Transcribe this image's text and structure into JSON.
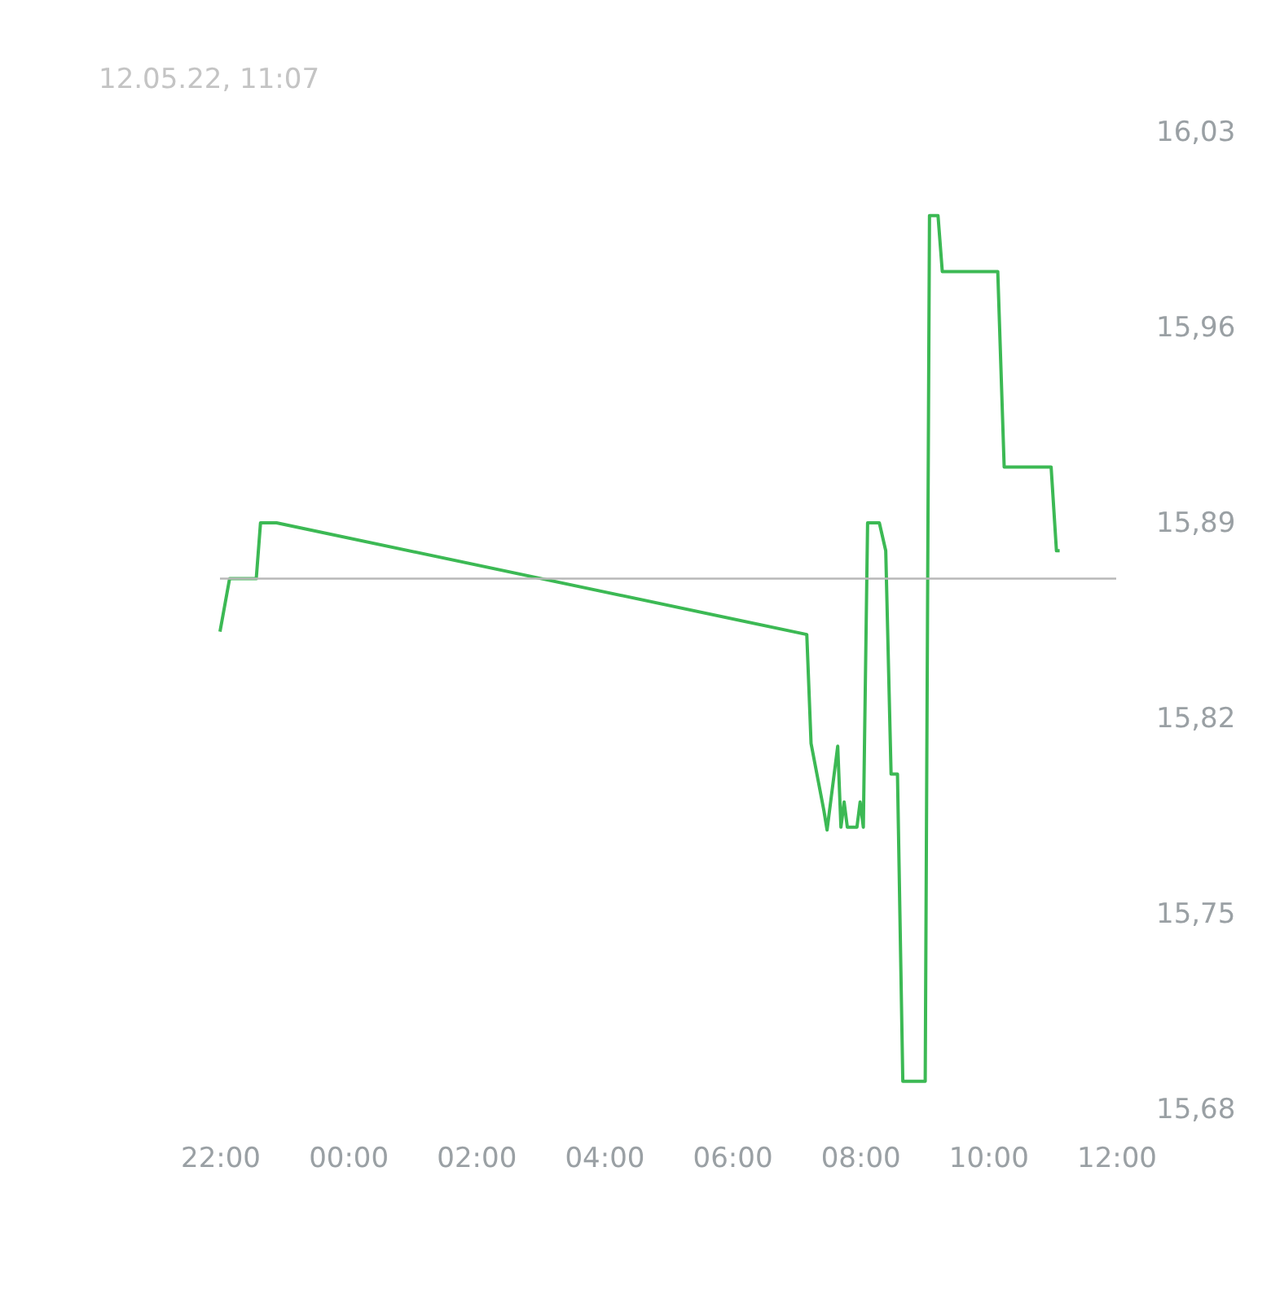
{
  "chart_data": {
    "type": "line",
    "subtitle": "12.05.22, 11:07",
    "x": [
      "--05-11T22:00",
      "--05-11T22:09",
      "--05-11T22:34",
      "--05-11T22:38",
      "--05-11T22:53",
      "--05-12T07:10",
      "--05-12T07:14",
      "--05-12T07:26",
      "--05-12T07:29",
      "--05-12T07:39",
      "--05-12T07:42",
      "--05-12T07:45",
      "--05-12T07:48",
      "--05-12T07:57",
      "--05-12T08:00",
      "--05-12T08:03",
      "--05-12T08:07",
      "--05-12T08:18",
      "--05-12T08:24",
      "--05-12T08:29",
      "--05-12T08:35",
      "--05-12T08:40",
      "--05-12T09:01",
      "--05-12T09:05",
      "--05-12T09:13",
      "--05-12T09:17",
      "--05-12T10:09",
      "--05-12T10:15",
      "--05-12T10:59",
      "--05-12T11:04",
      "--05-12T11:07"
    ],
    "series": [
      {
        "color": "#3cb954",
        "values": [
          15.851,
          15.87,
          15.87,
          15.89,
          15.89,
          15.85,
          15.811,
          15.787,
          15.78,
          15.81,
          15.781,
          15.79,
          15.781,
          15.781,
          15.79,
          15.781,
          15.89,
          15.89,
          15.88,
          15.8,
          15.8,
          15.69,
          15.69,
          16.0,
          16.0,
          15.98,
          15.98,
          15.91,
          15.91,
          15.88,
          15.88
        ]
      }
    ],
    "xlim": [
      "--05-11T22:00",
      "--05-12T12:00"
    ],
    "xticks": [
      {
        "value": "--05-11T22:00",
        "label": "22:00"
      },
      {
        "value": "--05-12T00:00",
        "label": "00:00"
      },
      {
        "value": "--05-12T02:00",
        "label": "02:00"
      },
      {
        "value": "--05-12T04:00",
        "label": "04:00"
      },
      {
        "value": "--05-12T06:00",
        "label": "06:00"
      },
      {
        "value": "--05-12T08:00",
        "label": "08:00"
      },
      {
        "value": "--05-12T10:00",
        "label": "10:00"
      },
      {
        "value": "--05-12T12:00",
        "label": "12:00"
      }
    ],
    "ylim": [
      15.68,
      16.03
    ],
    "yticks": [
      {
        "value": 15.68,
        "label": "15,68"
      },
      {
        "value": 15.75,
        "label": "15,75"
      },
      {
        "value": 15.82,
        "label": "15,82"
      },
      {
        "value": 15.89,
        "label": "15,89"
      },
      {
        "value": 15.96,
        "label": "15,96"
      },
      {
        "value": 16.03,
        "label": "16,03"
      }
    ],
    "ref_lines": [
      {
        "axis": "y",
        "value": 15.87,
        "color": "#b8b8b8"
      }
    ],
    "grid": false,
    "marker": "none",
    "line_style": "solid"
  }
}
